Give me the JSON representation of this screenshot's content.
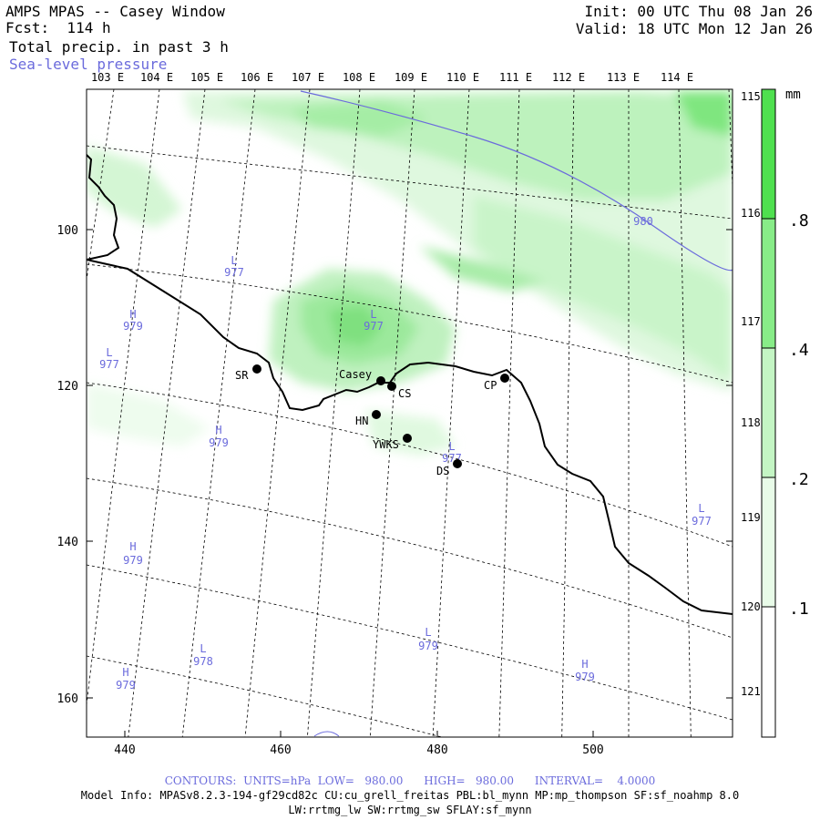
{
  "header": {
    "model": "AMPS MPAS -- Casey Window",
    "fcst": "Fcst:  114 h",
    "field": "Total precip. in past 3 h",
    "overlay": "Sea-level pressure",
    "init": "Init: 00 UTC Thu 08 Jan 26",
    "valid": "Valid: 18 UTC Mon 12 Jan 26"
  },
  "map": {
    "top_lon_labels": [
      "103 E",
      "104 E",
      "105 E",
      "106 E",
      "107 E",
      "108 E",
      "109 E",
      "110 E",
      "111 E",
      "112 E",
      "113 E",
      "114 E"
    ],
    "right_lon_labels": [
      "115 E",
      "116 E",
      "117 E",
      "118 E",
      "119 E",
      "120 E",
      "121 E"
    ],
    "x_ticks": [
      "440",
      "460",
      "480",
      "500"
    ],
    "y_ticks": [
      "100",
      "120",
      "140",
      "160"
    ],
    "stations": [
      {
        "name": "SR"
      },
      {
        "name": "Casey"
      },
      {
        "name": "CS"
      },
      {
        "name": "HN"
      },
      {
        "name": "YWKS"
      },
      {
        "name": "DS"
      },
      {
        "name": "CP"
      }
    ],
    "pressure_labels": [
      {
        "letter": "L",
        "value": "977"
      },
      {
        "letter": "H",
        "value": "979"
      },
      {
        "letter": "L",
        "value": "977"
      },
      {
        "letter": "L",
        "value": "977"
      },
      {
        "letter": "H",
        "value": "979"
      },
      {
        "letter": "L",
        "value": "977"
      },
      {
        "letter": "L",
        "value": "977"
      },
      {
        "letter": "H",
        "value": "979"
      },
      {
        "letter": "L",
        "value": "978"
      },
      {
        "letter": "H",
        "value": "979"
      },
      {
        "letter": "L",
        "value": "979"
      },
      {
        "letter": "H",
        "value": "979"
      }
    ],
    "contour_label": "980"
  },
  "colorbar": {
    "unit": "mm",
    "labels": [
      ".8",
      ".4",
      ".2",
      ".1"
    ],
    "colors": [
      "#4fe04f",
      "#88ec88",
      "#c4f5c4",
      "#e8fbe8",
      "#ffffff"
    ]
  },
  "footer": {
    "contours": "CONTOURS:  UNITS=hPa  LOW=   980.00      HIGH=   980.00      INTERVAL=    4.0000",
    "model_info": "Model Info: MPASv8.2.3-194-gf29cd82c CU:cu_grell_freitas PBL:bl_mynn MP:mp_thompson SF:sf_noahmp 8.0",
    "model_info2": "LW:rrtmg_lw SW:rrtmg_sw SFLAY:sf_mynn"
  }
}
